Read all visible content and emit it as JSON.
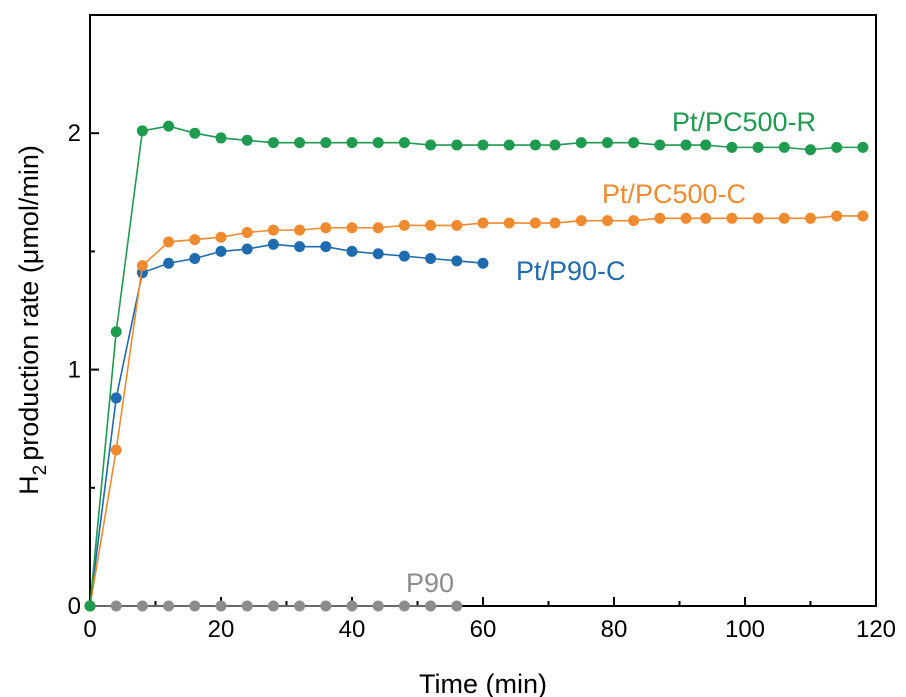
{
  "chart_data": {
    "type": "line",
    "xlabel": "Time (min)",
    "ylabel": "production rate (μmol/min)",
    "ylabel_prefix": "H",
    "ylabel_subscript": "2",
    "xlim": [
      0,
      120
    ],
    "ylim": [
      0,
      2.5
    ],
    "xticks": [
      0,
      20,
      40,
      60,
      80,
      100,
      120
    ],
    "yticks": [
      0,
      1,
      2
    ],
    "grid": false,
    "legend": "inline labels",
    "series": [
      {
        "name": "Pt/PC500-R",
        "color": "#1e9b4e",
        "x": [
          0,
          4,
          8,
          12,
          16,
          20,
          24,
          28,
          32,
          36,
          40,
          44,
          48,
          52,
          56,
          60,
          64,
          68,
          71,
          75,
          79,
          83,
          87,
          91,
          94,
          98,
          102,
          106,
          110,
          114,
          118
        ],
        "y": [
          0,
          1.16,
          2.01,
          2.03,
          2.0,
          1.98,
          1.97,
          1.96,
          1.96,
          1.96,
          1.96,
          1.96,
          1.96,
          1.95,
          1.95,
          1.95,
          1.95,
          1.95,
          1.95,
          1.96,
          1.96,
          1.96,
          1.95,
          1.95,
          1.95,
          1.94,
          1.94,
          1.94,
          1.93,
          1.94,
          1.94
        ]
      },
      {
        "name": "Pt/PC500-C",
        "color": "#f08a2e",
        "x": [
          0,
          4,
          8,
          12,
          16,
          20,
          24,
          28,
          32,
          36,
          40,
          44,
          48,
          52,
          56,
          60,
          64,
          68,
          71,
          75,
          79,
          83,
          87,
          91,
          94,
          98,
          102,
          106,
          110,
          114,
          118
        ],
        "y": [
          0,
          0.66,
          1.44,
          1.54,
          1.55,
          1.56,
          1.58,
          1.59,
          1.59,
          1.6,
          1.6,
          1.6,
          1.61,
          1.61,
          1.61,
          1.62,
          1.62,
          1.62,
          1.62,
          1.63,
          1.63,
          1.63,
          1.64,
          1.64,
          1.64,
          1.64,
          1.64,
          1.64,
          1.64,
          1.65,
          1.65
        ]
      },
      {
        "name": "Pt/P90-C",
        "color": "#1f6bb0",
        "x": [
          0,
          4,
          8,
          12,
          16,
          20,
          24,
          28,
          32,
          36,
          40,
          44,
          48,
          52,
          56,
          60
        ],
        "y": [
          0,
          0.88,
          1.41,
          1.45,
          1.47,
          1.5,
          1.51,
          1.53,
          1.52,
          1.52,
          1.5,
          1.49,
          1.48,
          1.47,
          1.46,
          1.45
        ]
      },
      {
        "name": "P90",
        "color": "#8c8c8c",
        "x": [
          0,
          4,
          8,
          12,
          16,
          20,
          24,
          28,
          32,
          36,
          40,
          44,
          48,
          52,
          56
        ],
        "y": [
          0,
          0,
          0,
          0,
          0,
          0,
          0,
          0,
          0,
          0,
          0,
          0,
          0,
          0,
          0
        ]
      }
    ]
  }
}
